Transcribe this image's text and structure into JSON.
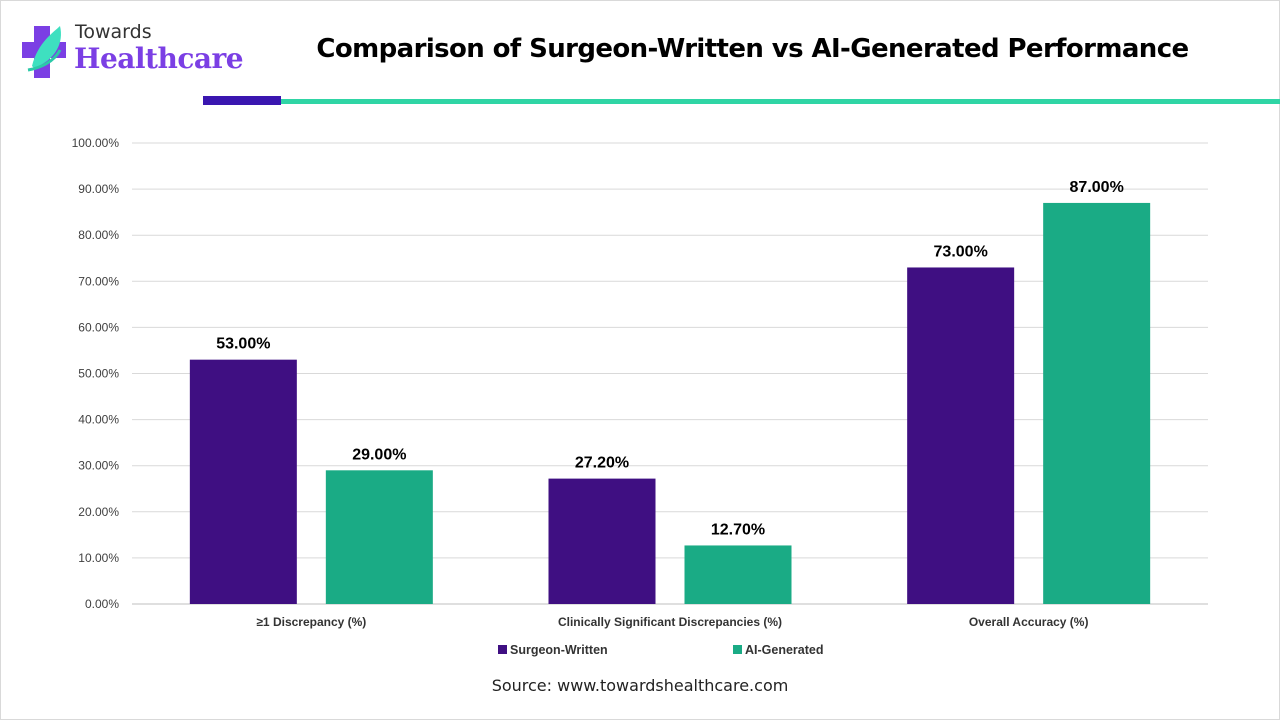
{
  "header": {
    "logo_top": "Towards",
    "logo_bottom": "Healthcare",
    "title": "Comparison of Surgeon-Written vs AI-Generated Performance"
  },
  "colors": {
    "surgeon": "#3f0f82",
    "ai": "#1aab85",
    "accent_purple": "#3a16b0",
    "accent_teal": "#2fd5a5",
    "logo_purple": "#7b3fe4"
  },
  "source": "Source: www.towardshealthcare.com",
  "chart_data": {
    "type": "bar",
    "title": "Comparison of Surgeon-Written vs AI-Generated Performance",
    "categories": [
      "≥1 Discrepancy (%)",
      "Clinically Significant Discrepancies (%)",
      "Overall Accuracy (%)"
    ],
    "series": [
      {
        "name": "Surgeon-Written",
        "values": [
          53.0,
          27.2,
          73.0
        ],
        "labels": [
          "53.00%",
          "27.20%",
          "73.00%"
        ]
      },
      {
        "name": "AI-Generated",
        "values": [
          29.0,
          12.7,
          87.0
        ],
        "labels": [
          "29.00%",
          "12.70%",
          "87.00%"
        ]
      }
    ],
    "yticks": [
      "0.00%",
      "10.00%",
      "20.00%",
      "30.00%",
      "40.00%",
      "50.00%",
      "60.00%",
      "70.00%",
      "80.00%",
      "90.00%",
      "100.00%"
    ],
    "ylim": [
      0,
      100
    ],
    "xlabel": "",
    "ylabel": "",
    "grid": true,
    "legend_position": "bottom"
  }
}
